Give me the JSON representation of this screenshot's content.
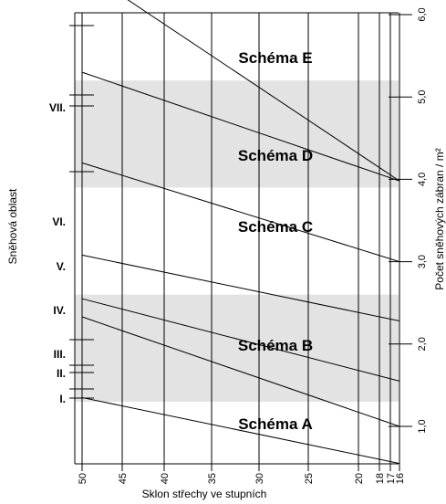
{
  "chart_data": {
    "type": "line",
    "xlabel": "Sklon střechy ve stupních",
    "ylabel_left": "Sněhová oblast",
    "ylabel_right": "Počet sněhových zábran / m²",
    "x_ticks": [
      50,
      45,
      40,
      35,
      30,
      25,
      20,
      18,
      17,
      16
    ],
    "y_right_ticks": [
      "1,0",
      "2,0",
      "3,0",
      "4,0",
      "5,0",
      "6,0"
    ],
    "y_right_values": [
      1,
      2,
      3,
      4,
      5,
      6
    ],
    "snow_zones": [
      {
        "label": "I."
      },
      {
        "label": "II."
      },
      {
        "label": "III."
      },
      {
        "label": "IV."
      },
      {
        "label": "V."
      },
      {
        "label": "VI."
      },
      {
        "label": "VII."
      }
    ],
    "schemes": [
      {
        "label": "Schéma A"
      },
      {
        "label": "Schéma B"
      },
      {
        "label": "Schéma C"
      },
      {
        "label": "Schéma D"
      },
      {
        "label": "Schéma E"
      }
    ],
    "shaded_bands": [
      {
        "scheme": "Schéma B",
        "y_from": 1.3,
        "y_to": 2.6
      },
      {
        "scheme": "Schéma D",
        "y_from": 3.9,
        "y_to": 5.2
      }
    ],
    "series": [
      {
        "points": [
          [
            50,
            1.35
          ],
          [
            16,
            0.55
          ]
        ]
      },
      {
        "points": [
          [
            50,
            2.33
          ],
          [
            16,
            1.0
          ]
        ]
      },
      {
        "points": [
          [
            50,
            2.55
          ],
          [
            16,
            1.55
          ]
        ]
      },
      {
        "points": [
          [
            50,
            3.08
          ],
          [
            16,
            2.28
          ]
        ]
      },
      {
        "points": [
          [
            50,
            4.2
          ],
          [
            16,
            3.0
          ]
        ]
      },
      {
        "points": [
          [
            50,
            5.3
          ],
          [
            16,
            3.98
          ]
        ]
      },
      {
        "points": [
          [
            50,
            6.55
          ],
          [
            16,
            3.98
          ]
        ]
      }
    ]
  }
}
